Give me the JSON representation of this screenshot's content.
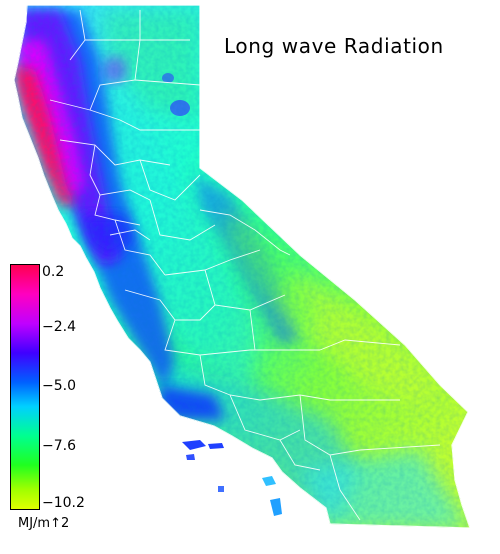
{
  "title": "Long wave Radiation",
  "legend": {
    "unit": "MJ/m↑2",
    "ticks": [
      "0.2",
      "−2.4",
      "−5.0",
      "−7.6",
      "−10.2"
    ],
    "colors": [
      "#ff0050",
      "#ff00ff",
      "#8000ff",
      "#0000ff",
      "#0090ff",
      "#00ffff",
      "#00ff80",
      "#00ff00",
      "#c0ff00",
      "#ffff00"
    ]
  },
  "palette": {
    "coast_pink": "#ff1060",
    "magenta": "#e000ff",
    "violet": "#7010ff",
    "blue": "#1040ff",
    "sky": "#10b0ff",
    "cyan": "#20f0e0",
    "green": "#20ff90",
    "lime": "#60ff40",
    "yellow_green": "#c0ff30"
  }
}
